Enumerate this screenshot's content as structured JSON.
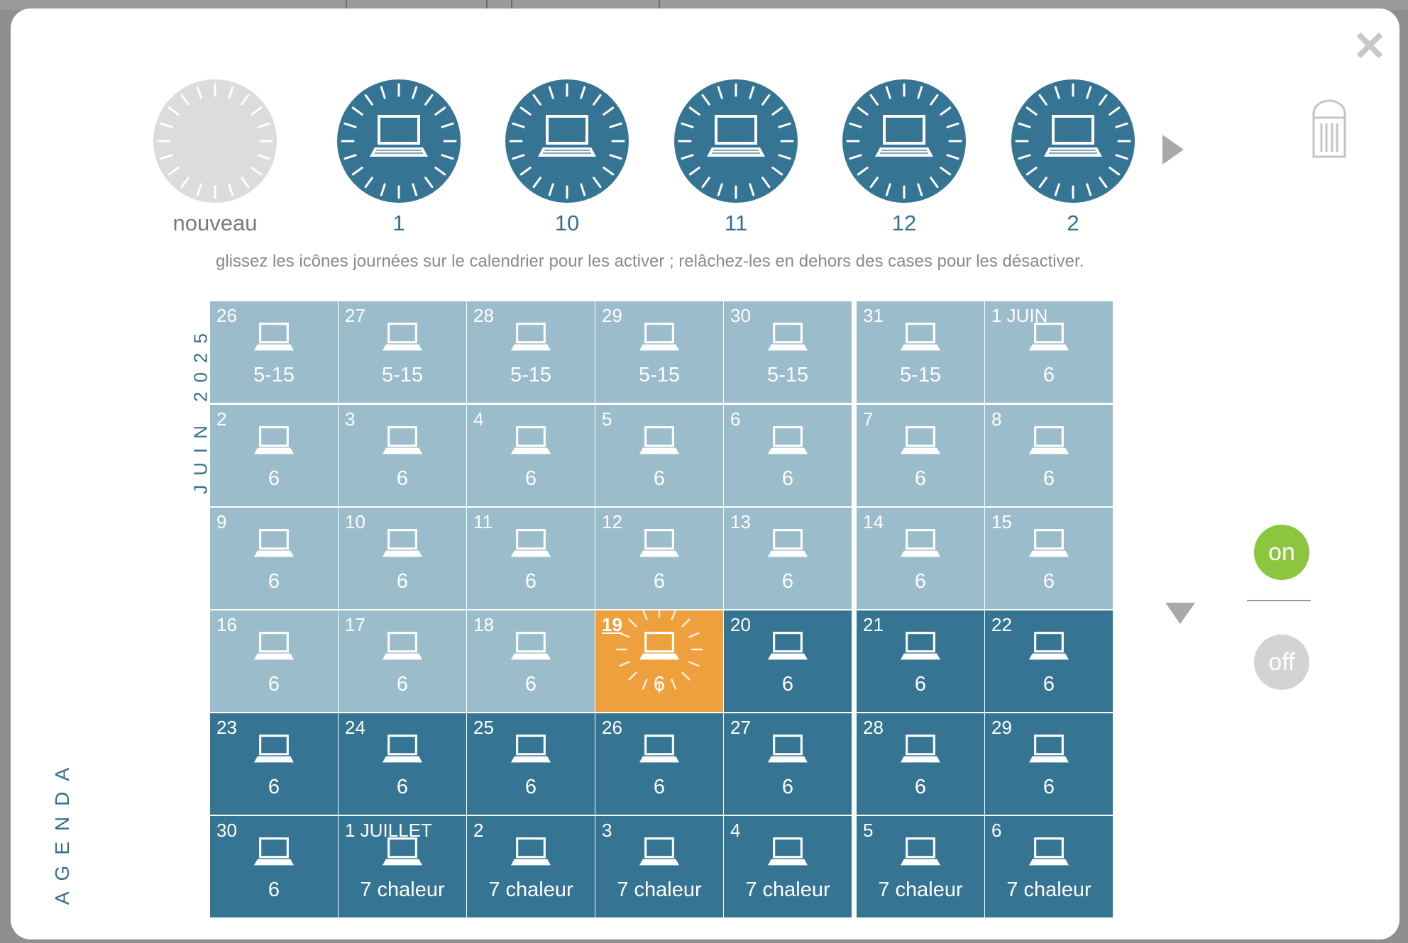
{
  "header": {
    "new_slot": {
      "label": "nouveau",
      "icon": "clock-dial-icon",
      "color": "#dcdcdc"
    },
    "slots": [
      {
        "label": "1",
        "icon": "laptop-icon"
      },
      {
        "label": "10",
        "icon": "laptop-icon"
      },
      {
        "label": "11",
        "icon": "laptop-icon"
      },
      {
        "label": "12",
        "icon": "laptop-icon"
      },
      {
        "label": "2",
        "icon": "laptop-icon"
      }
    ],
    "slot_color": "#357593",
    "next_icon": "triangle-right-icon",
    "trash_icon": "trash-can-icon"
  },
  "hint_text": "glissez les icônes journées sur le calendrier pour les activer ; relâchez-les en dehors des cases pour les désactiver.",
  "side_labels": {
    "month": "JUIN 2025",
    "section": "AGENDA"
  },
  "colors": {
    "past": "#9bbccb",
    "future": "#357593",
    "today": "#eea03d",
    "on": "#8cc63f",
    "off": "#d3d3d3"
  },
  "calendar": {
    "rows": [
      [
        {
          "date": "26",
          "count": "5-15",
          "state": "light"
        },
        {
          "date": "27",
          "count": "5-15",
          "state": "light"
        },
        {
          "date": "28",
          "count": "5-15",
          "state": "light"
        },
        {
          "date": "29",
          "count": "5-15",
          "state": "light"
        },
        {
          "date": "30",
          "count": "5-15",
          "state": "light"
        },
        {
          "date": "31",
          "count": "5-15",
          "state": "light"
        },
        {
          "date": "1 JUIN",
          "count": "6",
          "state": "light"
        }
      ],
      [
        {
          "date": "2",
          "count": "6",
          "state": "light"
        },
        {
          "date": "3",
          "count": "6",
          "state": "light"
        },
        {
          "date": "4",
          "count": "6",
          "state": "light"
        },
        {
          "date": "5",
          "count": "6",
          "state": "light"
        },
        {
          "date": "6",
          "count": "6",
          "state": "light"
        },
        {
          "date": "7",
          "count": "6",
          "state": "light"
        },
        {
          "date": "8",
          "count": "6",
          "state": "light"
        }
      ],
      [
        {
          "date": "9",
          "count": "6",
          "state": "light"
        },
        {
          "date": "10",
          "count": "6",
          "state": "light"
        },
        {
          "date": "11",
          "count": "6",
          "state": "light"
        },
        {
          "date": "12",
          "count": "6",
          "state": "light"
        },
        {
          "date": "13",
          "count": "6",
          "state": "light"
        },
        {
          "date": "14",
          "count": "6",
          "state": "light"
        },
        {
          "date": "15",
          "count": "6",
          "state": "light"
        }
      ],
      [
        {
          "date": "16",
          "count": "6",
          "state": "light"
        },
        {
          "date": "17",
          "count": "6",
          "state": "light"
        },
        {
          "date": "18",
          "count": "6",
          "state": "light"
        },
        {
          "date": "19",
          "count": "6",
          "state": "today"
        },
        {
          "date": "20",
          "count": "6",
          "state": "dark"
        },
        {
          "date": "21",
          "count": "6",
          "state": "dark"
        },
        {
          "date": "22",
          "count": "6",
          "state": "dark"
        }
      ],
      [
        {
          "date": "23",
          "count": "6",
          "state": "dark"
        },
        {
          "date": "24",
          "count": "6",
          "state": "dark"
        },
        {
          "date": "25",
          "count": "6",
          "state": "dark"
        },
        {
          "date": "26",
          "count": "6",
          "state": "dark"
        },
        {
          "date": "27",
          "count": "6",
          "state": "dark"
        },
        {
          "date": "28",
          "count": "6",
          "state": "dark"
        },
        {
          "date": "29",
          "count": "6",
          "state": "dark"
        }
      ],
      [
        {
          "date": "30",
          "count": "6",
          "state": "dark"
        },
        {
          "date": "1 JUILLET",
          "count": "7 chaleur",
          "state": "dark"
        },
        {
          "date": "2",
          "count": "7 chaleur",
          "state": "dark"
        },
        {
          "date": "3",
          "count": "7 chaleur",
          "state": "dark"
        },
        {
          "date": "4",
          "count": "7 chaleur",
          "state": "dark"
        },
        {
          "date": "5",
          "count": "7 chaleur",
          "state": "dark"
        },
        {
          "date": "6",
          "count": "7 chaleur",
          "state": "dark"
        }
      ]
    ]
  },
  "toggle": {
    "on_label": "on",
    "off_label": "off",
    "down_icon": "triangle-down-icon"
  }
}
